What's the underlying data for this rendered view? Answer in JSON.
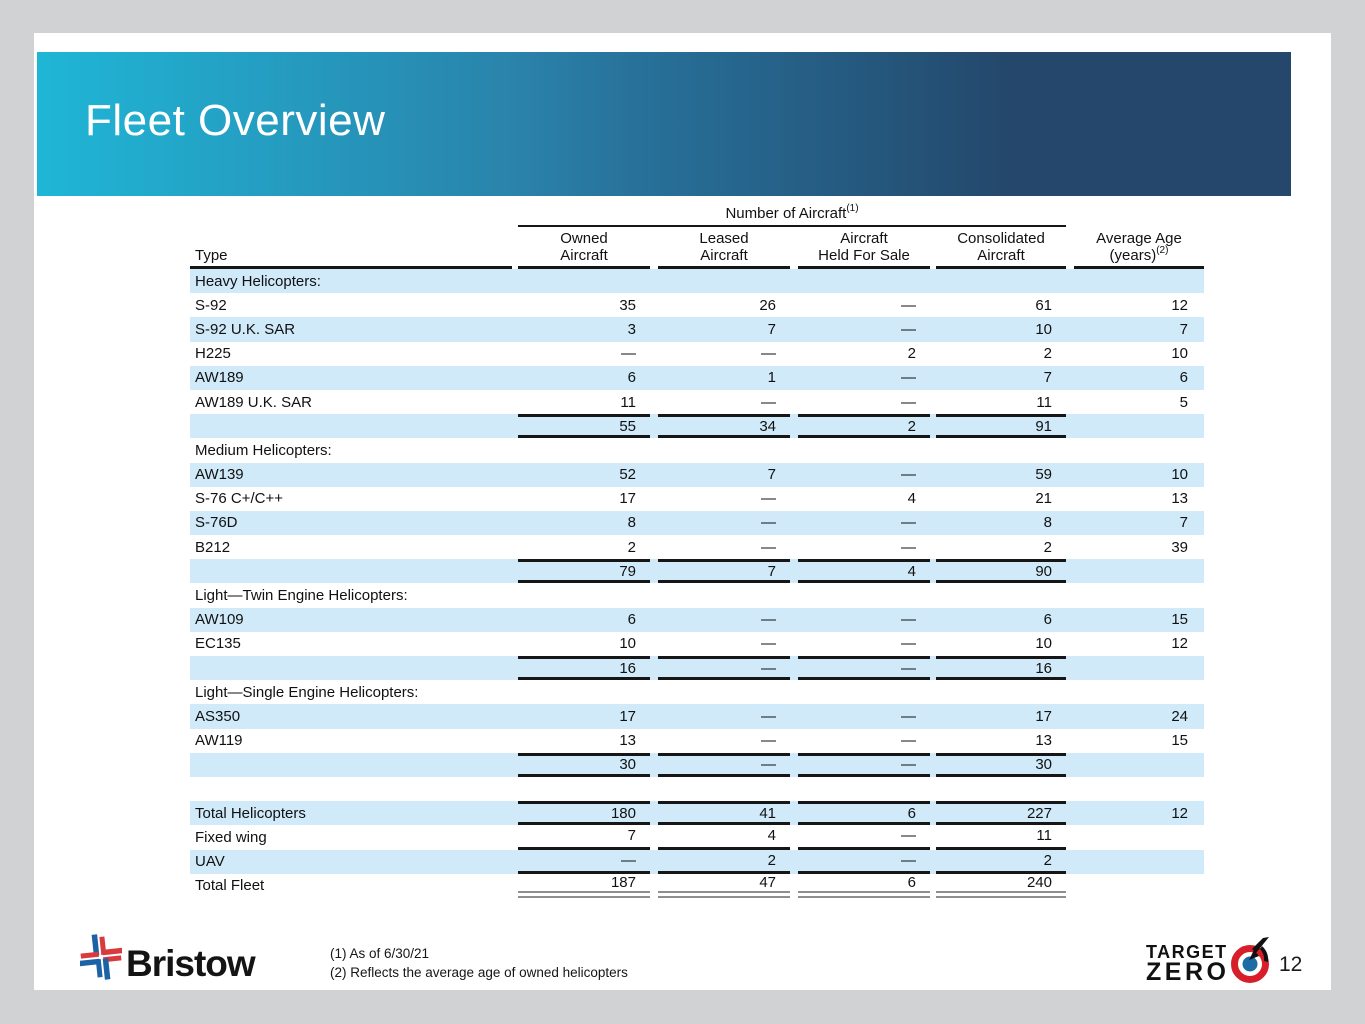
{
  "slide": {
    "title": "Fleet Overview",
    "page_number": "12"
  },
  "table": {
    "group_header": {
      "text": "Number of Aircraft",
      "sup": "(1)"
    },
    "type_header": "Type",
    "columns": [
      {
        "line1": "Owned",
        "line2": "Aircraft",
        "sup": ""
      },
      {
        "line1": "Leased",
        "line2": "Aircraft",
        "sup": ""
      },
      {
        "line1": "Aircraft",
        "line2": "Held For Sale",
        "sup": ""
      },
      {
        "line1": "Consolidated",
        "line2": "Aircraft",
        "sup": ""
      },
      {
        "line1": "Average Age",
        "line2": "(years)",
        "sup": "(2)"
      }
    ],
    "rows": [
      {
        "label": "Heavy Helicopters:",
        "kind": "group",
        "values": [
          "",
          "",
          "",
          "",
          ""
        ]
      },
      {
        "label": "S-92",
        "kind": "data",
        "values": [
          "35",
          "26",
          "—",
          "61",
          "12"
        ]
      },
      {
        "label": "S-92 U.K. SAR",
        "kind": "data",
        "values": [
          "3",
          "7",
          "—",
          "10",
          "7"
        ]
      },
      {
        "label": "H225",
        "kind": "data",
        "values": [
          "—",
          "—",
          "2",
          "2",
          "10"
        ]
      },
      {
        "label": "AW189",
        "kind": "data",
        "values": [
          "6",
          "1",
          "—",
          "7",
          "6"
        ]
      },
      {
        "label": "AW189 U.K. SAR",
        "kind": "data",
        "values": [
          "11",
          "—",
          "—",
          "11",
          "5"
        ]
      },
      {
        "label": "",
        "kind": "subtotal",
        "values": [
          "55",
          "34",
          "2",
          "91",
          ""
        ]
      },
      {
        "label": "Medium Helicopters:",
        "kind": "group",
        "values": [
          "",
          "",
          "",
          "",
          ""
        ]
      },
      {
        "label": "AW139",
        "kind": "data",
        "values": [
          "52",
          "7",
          "—",
          "59",
          "10"
        ]
      },
      {
        "label": "S-76 C+/C++",
        "kind": "data",
        "values": [
          "17",
          "—",
          "4",
          "21",
          "13"
        ]
      },
      {
        "label": "S-76D",
        "kind": "data",
        "values": [
          "8",
          "—",
          "—",
          "8",
          "7"
        ]
      },
      {
        "label": "B212",
        "kind": "data",
        "values": [
          "2",
          "—",
          "—",
          "2",
          "39"
        ]
      },
      {
        "label": "",
        "kind": "subtotal",
        "values": [
          "79",
          "7",
          "4",
          "90",
          ""
        ]
      },
      {
        "label": "Light—Twin Engine Helicopters:",
        "kind": "group",
        "values": [
          "",
          "",
          "",
          "",
          ""
        ]
      },
      {
        "label": "AW109",
        "kind": "data",
        "values": [
          "6",
          "—",
          "—",
          "6",
          "15"
        ]
      },
      {
        "label": "EC135",
        "kind": "data",
        "values": [
          "10",
          "—",
          "—",
          "10",
          "12"
        ]
      },
      {
        "label": "",
        "kind": "subtotal",
        "values": [
          "16",
          "—",
          "—",
          "16",
          ""
        ]
      },
      {
        "label": "Light—Single Engine Helicopters:",
        "kind": "group",
        "values": [
          "",
          "",
          "",
          "",
          ""
        ]
      },
      {
        "label": "AS350",
        "kind": "data",
        "values": [
          "17",
          "—",
          "—",
          "17",
          "24"
        ]
      },
      {
        "label": "AW119",
        "kind": "data",
        "values": [
          "13",
          "—",
          "—",
          "13",
          "15"
        ]
      },
      {
        "label": "",
        "kind": "subtotal",
        "values": [
          "30",
          "—",
          "—",
          "30",
          ""
        ]
      },
      {
        "label": "",
        "kind": "spacer",
        "values": [
          "",
          "",
          "",
          "",
          ""
        ]
      },
      {
        "label": "Total Helicopters",
        "kind": "total",
        "values": [
          "180",
          "41",
          "6",
          "227",
          "12"
        ]
      },
      {
        "label": "Fixed wing",
        "kind": "underline",
        "values": [
          "7",
          "4",
          "—",
          "11",
          ""
        ]
      },
      {
        "label": "UAV",
        "kind": "underline",
        "values": [
          "—",
          "2",
          "—",
          "2",
          ""
        ]
      },
      {
        "label": "Total Fleet",
        "kind": "grandtotal",
        "values": [
          "187",
          "47",
          "6",
          "240",
          ""
        ]
      }
    ]
  },
  "footer": {
    "footnote1": "(1) As of 6/30/21",
    "footnote2": "(2) Reflects the average age of owned helicopters",
    "bristow_wordmark": "Bristow",
    "target_zero": {
      "line1": "TARGET",
      "line2": "ZERO"
    }
  },
  "colors": {
    "banner_gradient_start": "#1fb6d6",
    "banner_gradient_end": "#24476b",
    "row_shade": "#d0eafa",
    "table_line": "#161616",
    "grand_total_line": "#8e8e8e",
    "bristow_blue": "#1c63a5",
    "bristow_red": "#d93a3e",
    "target_red": "#d71f2b",
    "target_blue": "#1d6ba5"
  }
}
